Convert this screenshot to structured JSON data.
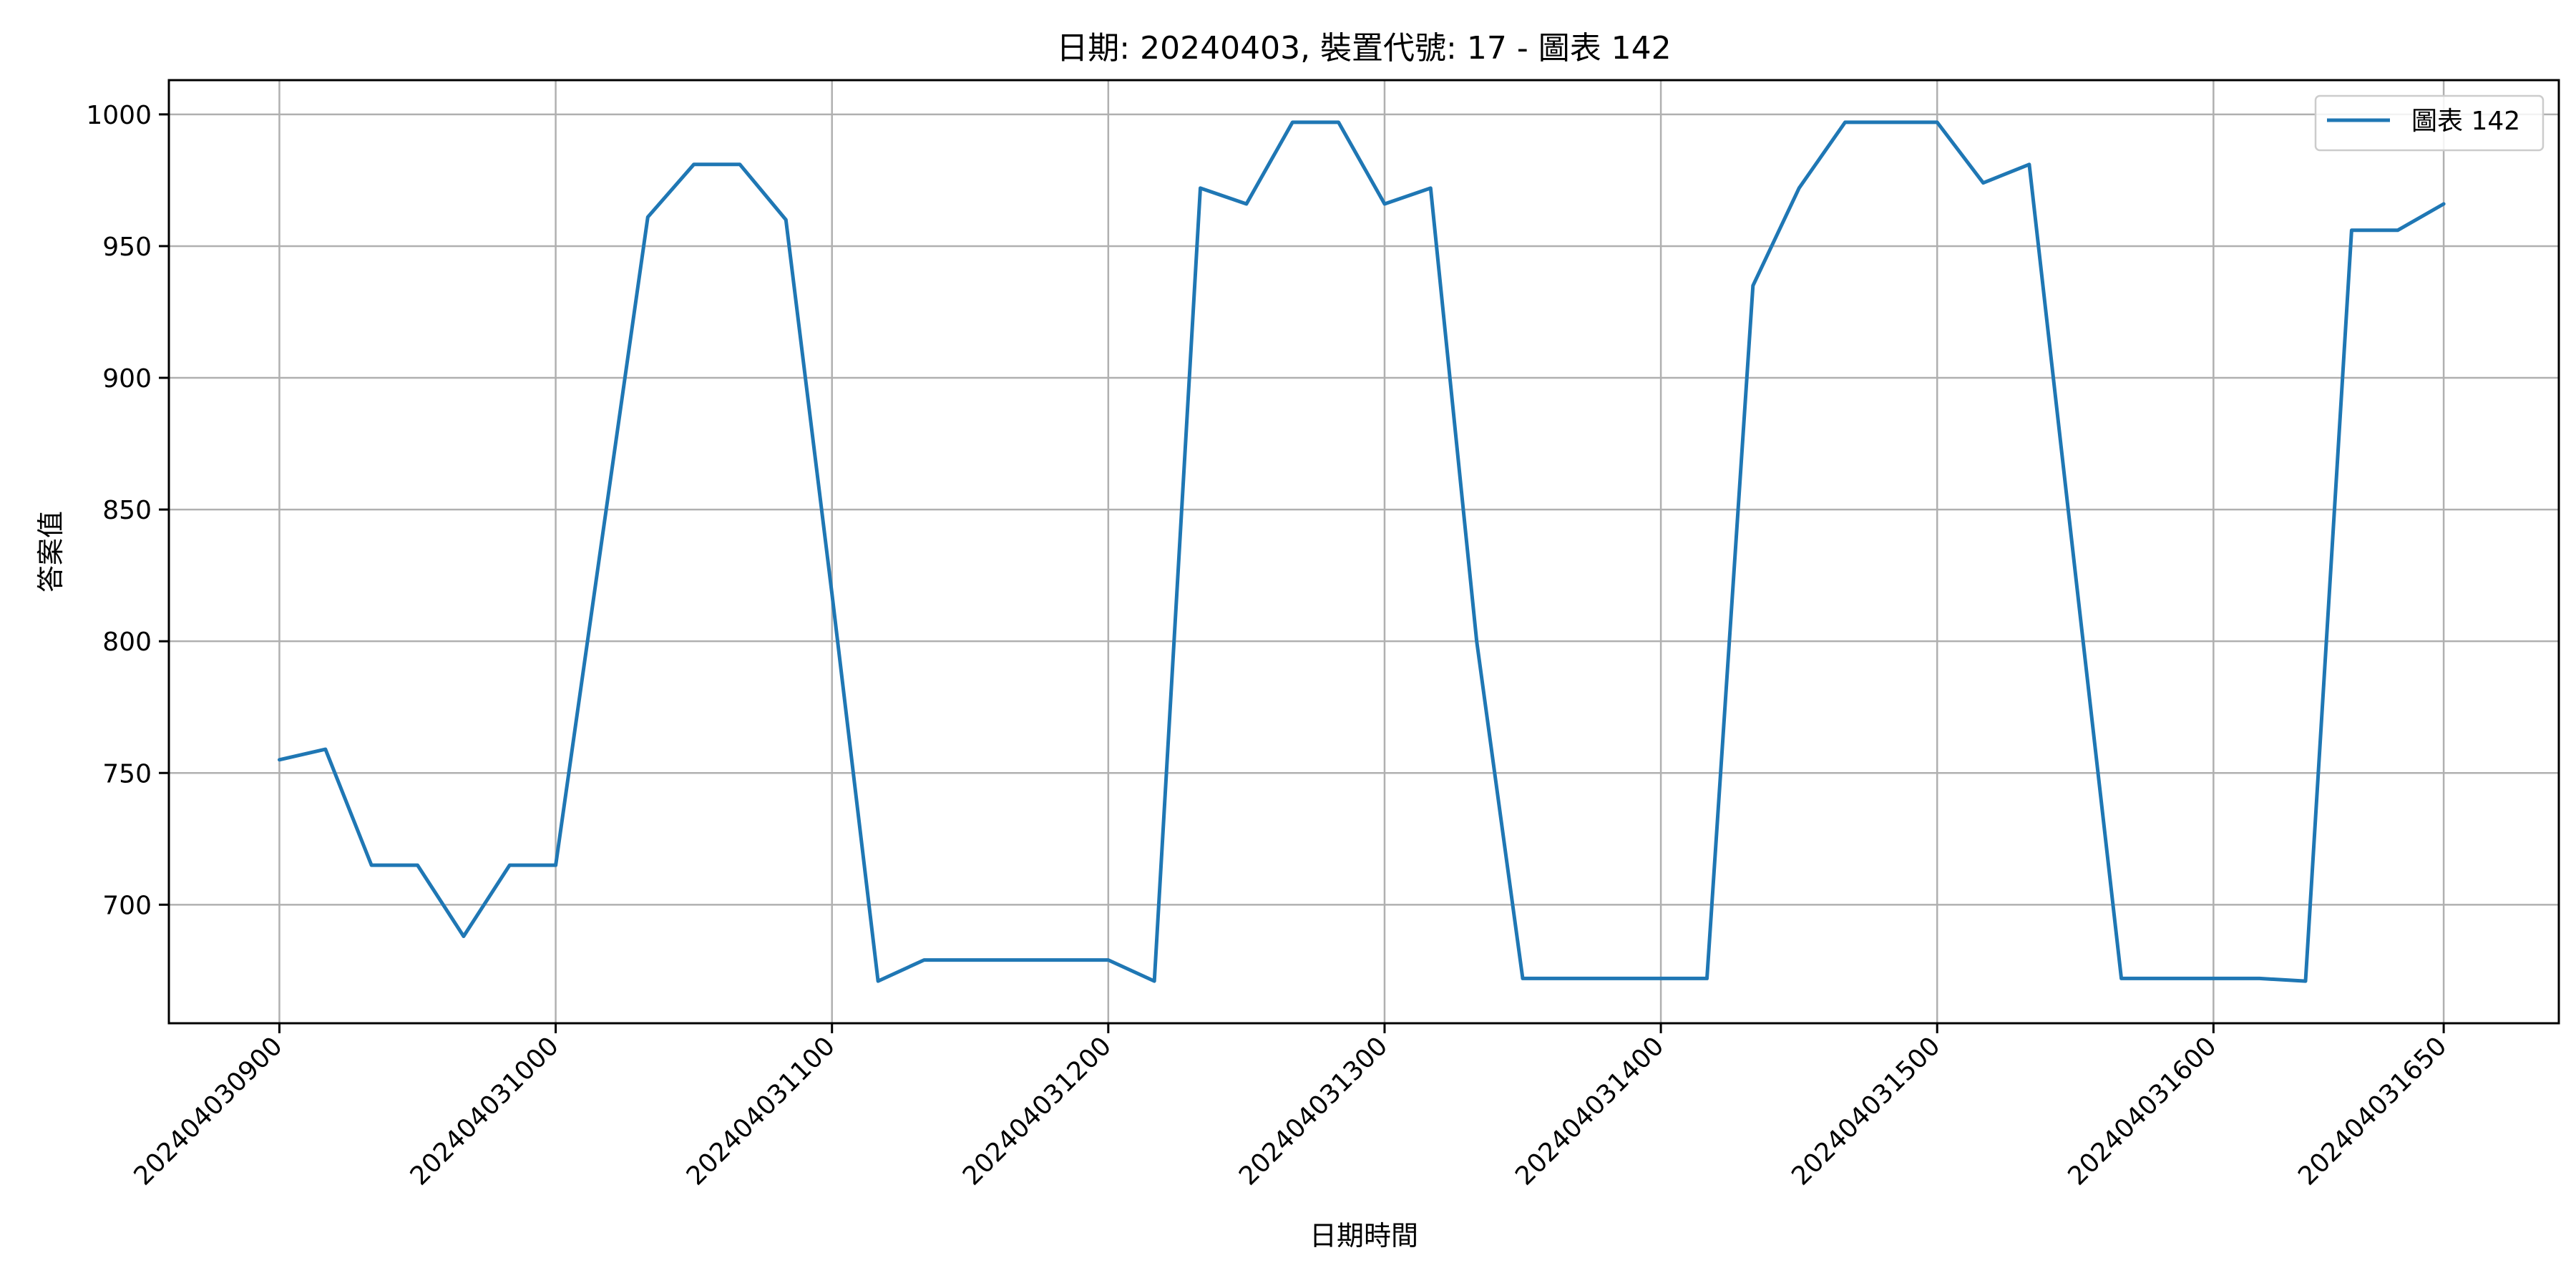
{
  "chart_data": {
    "type": "line",
    "title": "日期: 20240403, 裝置代號: 17 - 圖表 142",
    "xlabel": "日期時間",
    "ylabel": "答案值",
    "x_tick_labels": [
      "202404030900",
      "202404031000",
      "202404031100",
      "202404031200",
      "202404031300",
      "202404031400",
      "202404031500",
      "202404031600",
      "202404031650"
    ],
    "y_tick_labels": [
      "700",
      "750",
      "800",
      "850",
      "900",
      "950",
      "1000"
    ],
    "y_ticks": [
      700,
      750,
      800,
      850,
      900,
      950,
      1000
    ],
    "xlim": [
      8.6,
      17.25
    ],
    "ylim": [
      655,
      1013
    ],
    "grid": true,
    "legend_position": "top-right",
    "series": [
      {
        "name": "圖表 142",
        "color": "#1f77b4",
        "points": [
          [
            9.0,
            755
          ],
          [
            9.1667,
            759
          ],
          [
            9.3333,
            715
          ],
          [
            9.5,
            715
          ],
          [
            9.6667,
            688
          ],
          [
            9.8333,
            715
          ],
          [
            10.0,
            715
          ],
          [
            10.1667,
            838
          ],
          [
            10.3333,
            961
          ],
          [
            10.5,
            981
          ],
          [
            10.6667,
            981
          ],
          [
            10.8333,
            960
          ],
          [
            11.0,
            818
          ],
          [
            11.1667,
            671
          ],
          [
            11.3333,
            679
          ],
          [
            11.5,
            679
          ],
          [
            11.6667,
            679
          ],
          [
            11.8333,
            679
          ],
          [
            12.0,
            679
          ],
          [
            12.1667,
            671
          ],
          [
            12.3333,
            972
          ],
          [
            12.5,
            966
          ],
          [
            12.6667,
            997
          ],
          [
            12.8333,
            997
          ],
          [
            13.0,
            966
          ],
          [
            13.1667,
            972
          ],
          [
            13.3333,
            800
          ],
          [
            13.5,
            672
          ],
          [
            13.6667,
            672
          ],
          [
            13.8333,
            672
          ],
          [
            14.0,
            672
          ],
          [
            14.1667,
            672
          ],
          [
            14.3333,
            935
          ],
          [
            14.5,
            972
          ],
          [
            14.6667,
            997
          ],
          [
            14.8333,
            997
          ],
          [
            15.0,
            997
          ],
          [
            15.1667,
            974
          ],
          [
            15.3333,
            981
          ],
          [
            15.5,
            826
          ],
          [
            15.6667,
            672
          ],
          [
            15.8333,
            672
          ],
          [
            16.0,
            672
          ],
          [
            16.1667,
            672
          ],
          [
            16.3333,
            671
          ],
          [
            16.5,
            956
          ],
          [
            16.6667,
            956
          ],
          [
            16.8333,
            966
          ]
        ]
      }
    ],
    "x_tick_positions": [
      9,
      10,
      11,
      12,
      13,
      14,
      15,
      16,
      16.8333
    ]
  }
}
